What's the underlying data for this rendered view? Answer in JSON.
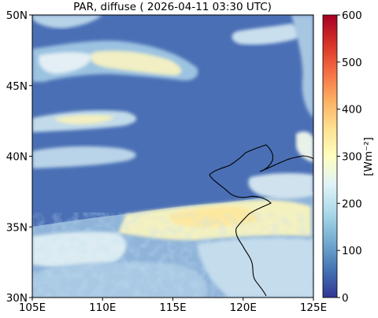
{
  "title": "PAR, diffuse ( 2026-04-11 03:30 UTC)",
  "map": {
    "lon_range": [
      105,
      125
    ],
    "lat_range": [
      30,
      50
    ],
    "x_ticks": [
      {
        "value": 105,
        "label": "105E"
      },
      {
        "value": 110,
        "label": "110E"
      },
      {
        "value": 115,
        "label": "115E"
      },
      {
        "value": 120,
        "label": "120E"
      },
      {
        "value": 125,
        "label": "125E"
      }
    ],
    "y_ticks": [
      {
        "value": 30,
        "label": "30N"
      },
      {
        "value": 35,
        "label": "35N"
      },
      {
        "value": 40,
        "label": "40N"
      },
      {
        "value": 45,
        "label": "45N"
      },
      {
        "value": 50,
        "label": "50N"
      }
    ],
    "background_value": 30
  },
  "colorbar": {
    "label": "[Wm⁻²]",
    "min": 0,
    "max": 600,
    "ticks": [
      {
        "value": 0,
        "label": "0"
      },
      {
        "value": 100,
        "label": "100"
      },
      {
        "value": 200,
        "label": "200"
      },
      {
        "value": 300,
        "label": "300"
      },
      {
        "value": 400,
        "label": "400"
      },
      {
        "value": 500,
        "label": "500"
      },
      {
        "value": 600,
        "label": "600"
      }
    ],
    "colormap": [
      "#313695",
      "#4575b4",
      "#74add1",
      "#abd9e9",
      "#e0f3f8",
      "#ffffbf",
      "#fee090",
      "#fdae61",
      "#f46d43",
      "#d73027",
      "#a50026"
    ]
  }
}
